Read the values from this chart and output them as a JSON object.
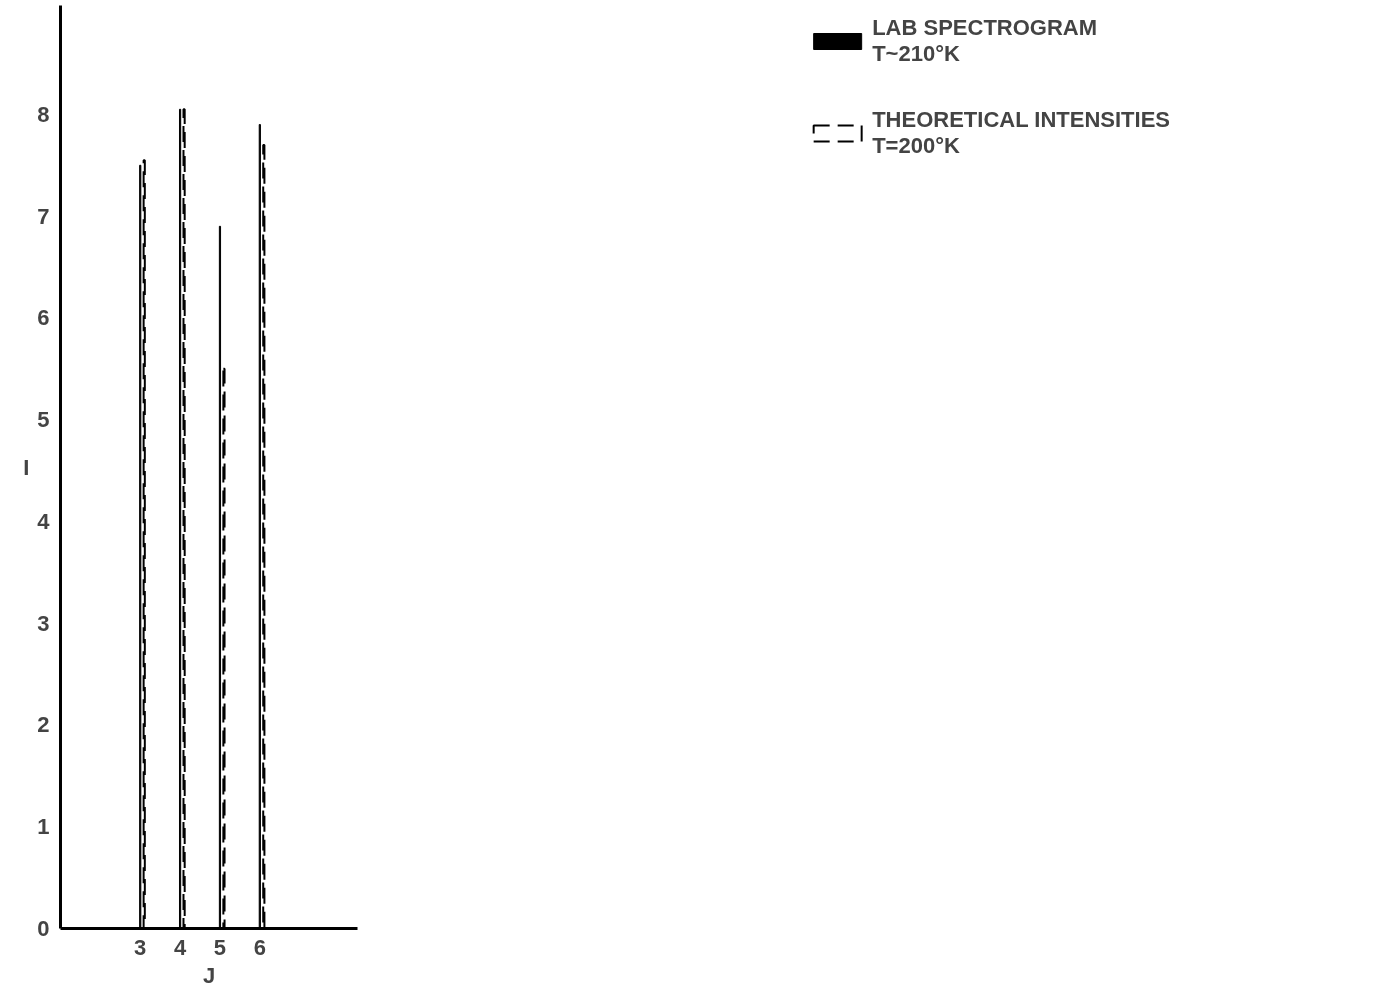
{
  "chart_data": {
    "type": "bar",
    "xlabel": "J",
    "ylabel": "I",
    "xlim": [
      1,
      8.45
    ],
    "ylim": [
      0,
      9.07
    ],
    "xticks": [
      3,
      4,
      5,
      6
    ],
    "yticks": [
      0,
      1,
      2,
      3,
      4,
      5,
      6,
      7,
      8
    ],
    "grid": false,
    "legend": "right",
    "series": [
      {
        "name": "LAB SPECTROGRAM\nT~210°K",
        "color": "#000000",
        "line_style": "solid",
        "x": [
          3,
          4,
          5,
          6
        ],
        "values": [
          7.5,
          8.05,
          6.9,
          7.9
        ]
      },
      {
        "name": "THEORETICAL INTENSITIES\nT=200°K",
        "color": "#000000",
        "line_style": "dashed",
        "x": [
          3.1,
          4.1,
          5.1,
          6.1
        ],
        "values": [
          7.55,
          8.05,
          5.5,
          7.7
        ]
      }
    ]
  }
}
